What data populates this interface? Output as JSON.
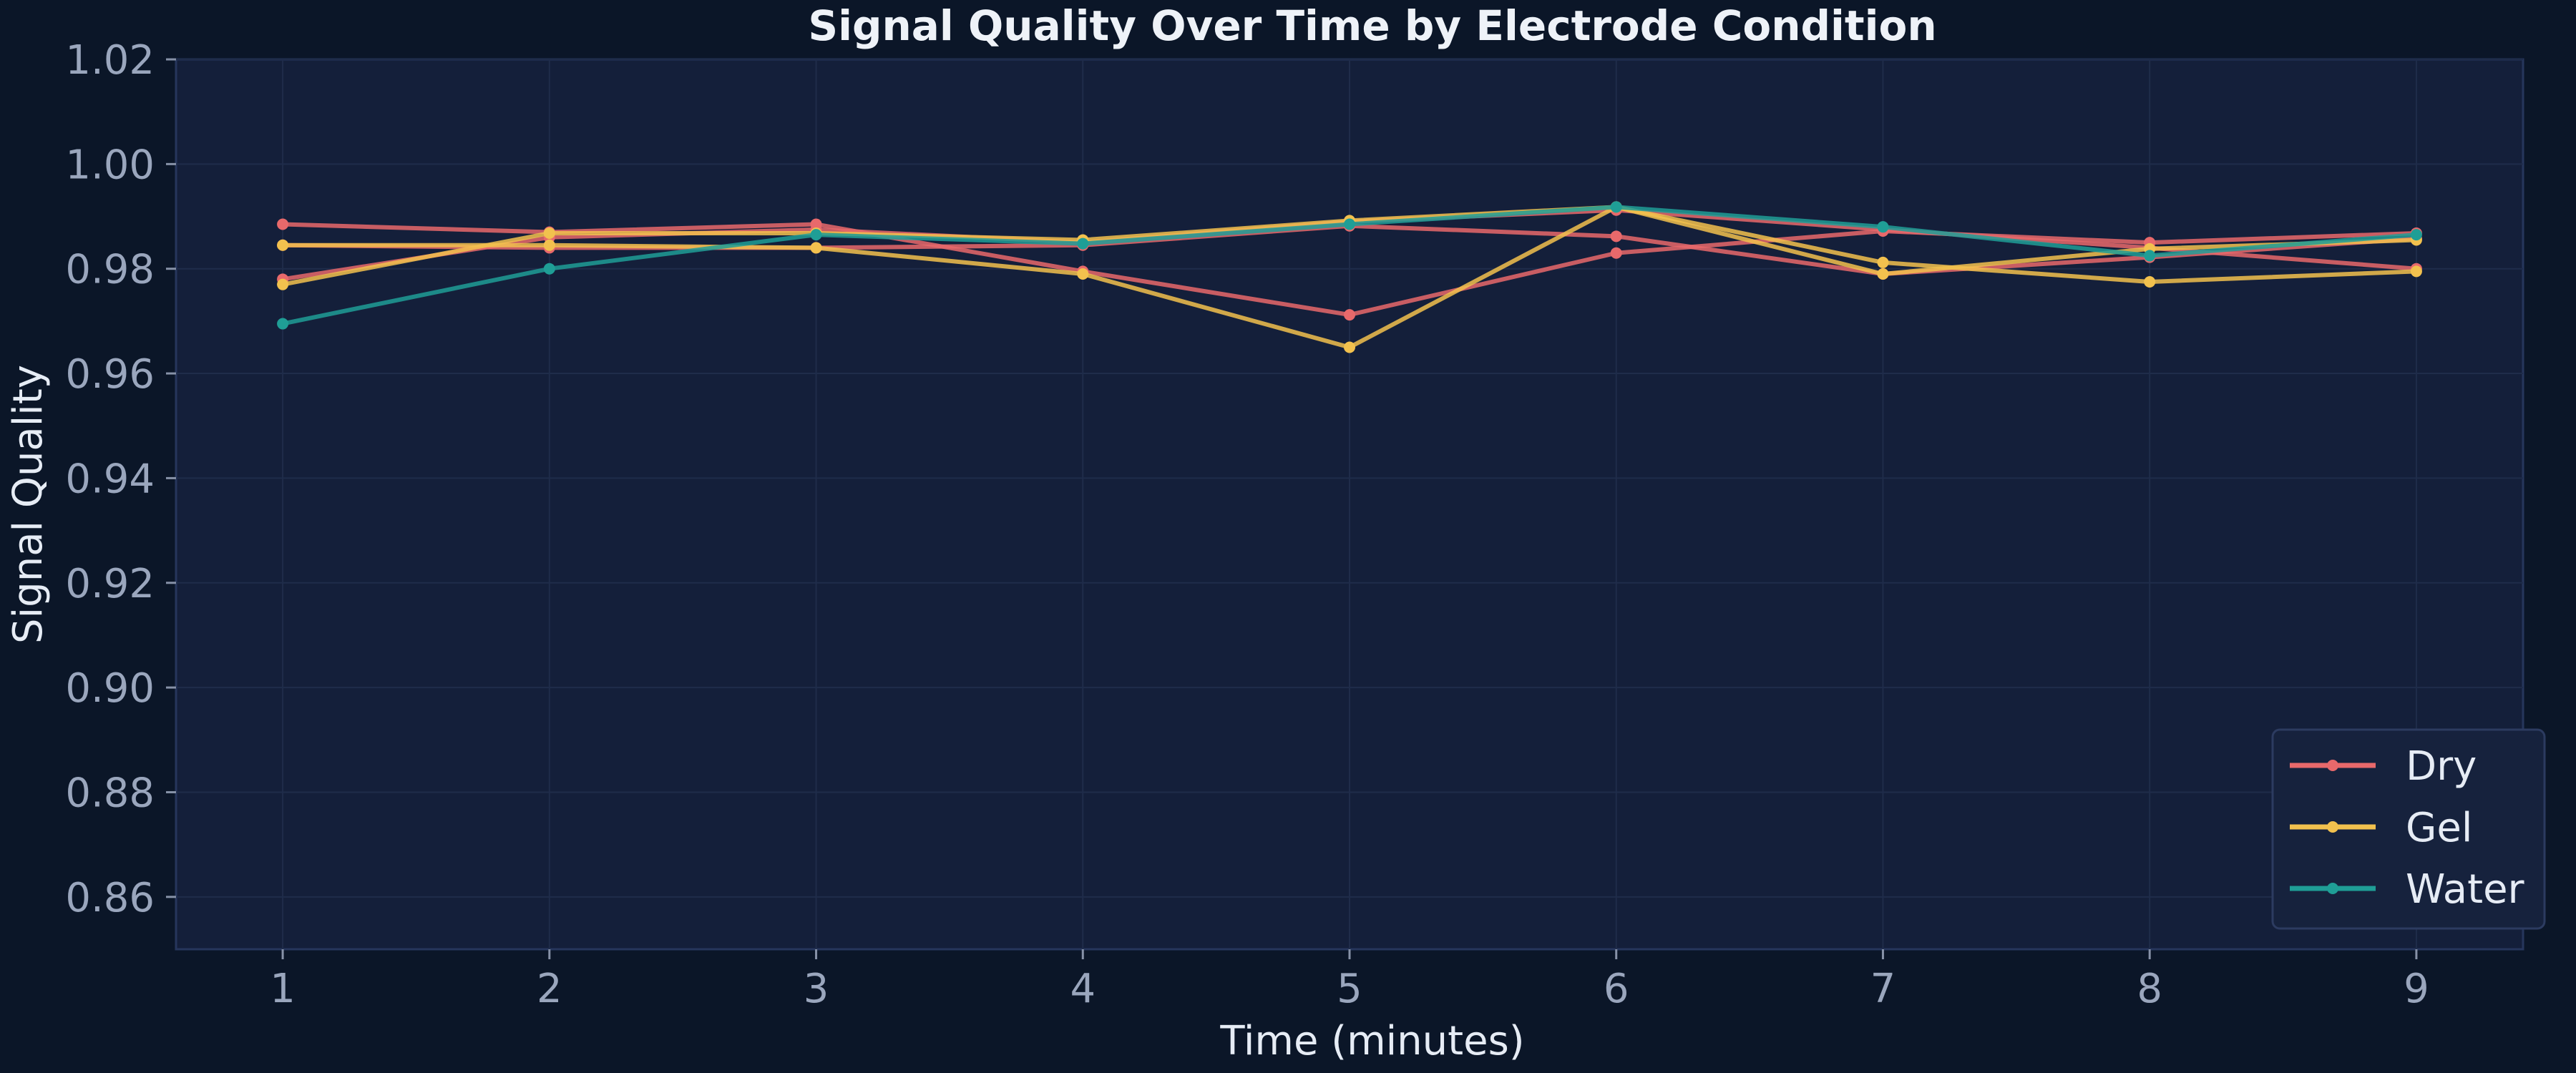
{
  "chart_data": {
    "type": "line",
    "title": "Signal Quality Over Time by Electrode Condition",
    "xlabel": "Time (minutes)",
    "ylabel": "Signal Quality",
    "xlim": [
      0.6,
      9.4
    ],
    "ylim": [
      0.85,
      1.02
    ],
    "x_ticks": [
      1,
      2,
      3,
      4,
      5,
      6,
      7,
      8,
      9
    ],
    "y_ticks": [
      0.86,
      0.88,
      0.9,
      0.92,
      0.94,
      0.96,
      0.98,
      1.0,
      1.02
    ],
    "y_tick_labels": [
      "0.86",
      "0.88",
      "0.90",
      "0.92",
      "0.94",
      "0.96",
      "0.98",
      "1.00",
      "1.02"
    ],
    "grid": true,
    "legend_position": "bottom-right",
    "legend": [
      "Dry",
      "Gel",
      "Water"
    ],
    "series_colors": {
      "Dry": "#e8696b",
      "Gel": "#f2c14e",
      "Water": "#1f9e96"
    },
    "lines": [
      {
        "name": "Dry",
        "x": [
          1,
          2,
          3,
          4,
          5,
          6,
          7,
          8,
          9
        ],
        "y": [
          0.9885,
          0.987,
          0.9885,
          0.9795,
          0.9712,
          0.983,
          0.9872,
          0.985,
          0.9868
        ]
      },
      {
        "name": "Dry",
        "x": [
          1,
          2,
          3,
          4,
          5,
          6,
          7,
          8,
          9
        ],
        "y": [
          0.978,
          0.986,
          0.9875,
          0.985,
          0.989,
          0.9912,
          0.9875,
          0.984,
          0.98
        ]
      },
      {
        "name": "Dry",
        "x": [
          1,
          2,
          3,
          4,
          5,
          6,
          7,
          8,
          9
        ],
        "y": [
          0.9845,
          0.984,
          0.984,
          0.9845,
          0.9882,
          0.9862,
          0.979,
          0.9822,
          0.9858
        ]
      },
      {
        "name": "Gel",
        "x": [
          1,
          2,
          3,
          4,
          5,
          6,
          7,
          8,
          9
        ],
        "y": [
          0.977,
          0.9868,
          0.9868,
          0.9855,
          0.9892,
          0.9918,
          0.9812,
          0.9775,
          0.9795
        ]
      },
      {
        "name": "Gel",
        "x": [
          1,
          2,
          3,
          4,
          5,
          6,
          7,
          8,
          9
        ],
        "y": [
          0.9845,
          0.9845,
          0.984,
          0.979,
          0.965,
          0.9918,
          0.979,
          0.9838,
          0.9855
        ]
      },
      {
        "name": "Water",
        "x": [
          1,
          2,
          3,
          4,
          5,
          6,
          7,
          8,
          9
        ],
        "y": [
          0.9695,
          0.98,
          0.9865,
          0.9848,
          0.9885,
          0.9918,
          0.988,
          0.9825,
          0.9865
        ]
      }
    ]
  }
}
